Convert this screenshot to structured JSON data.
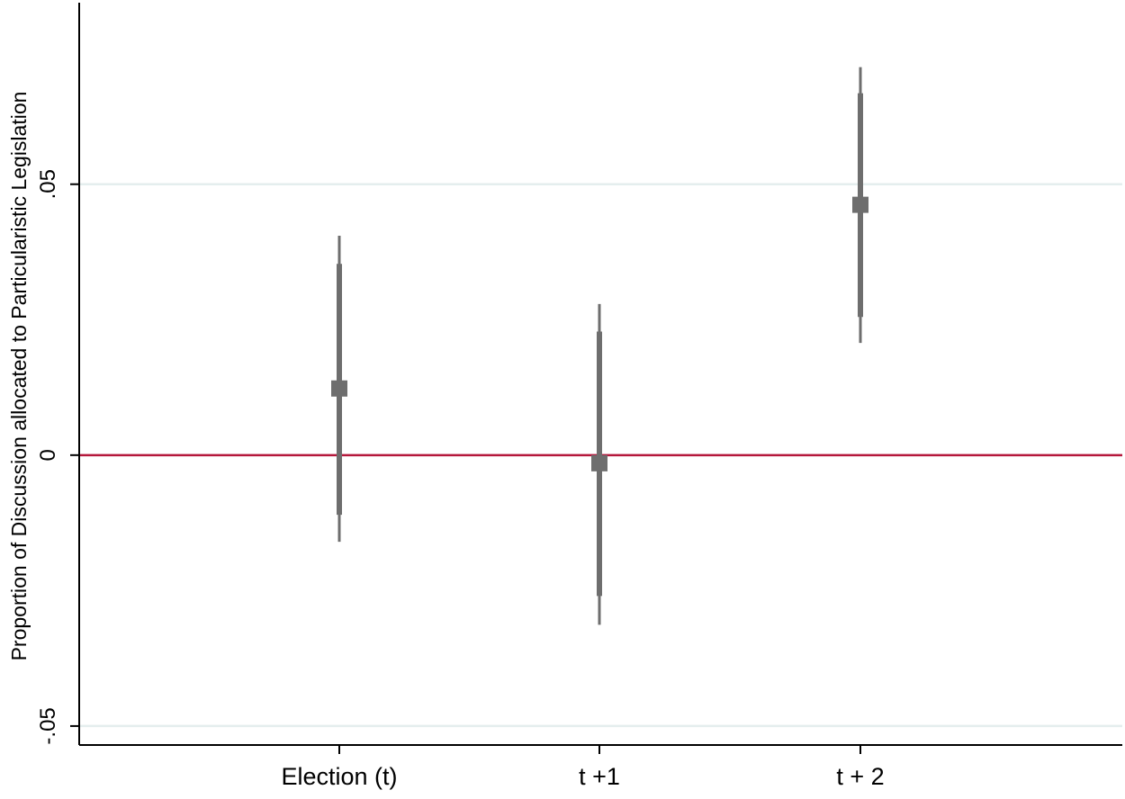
{
  "chart_data": {
    "type": "scatter",
    "title": "",
    "xlabel": "",
    "ylabel": "Proportion of Discussion allocated to Particularistic Legislation",
    "categories": [
      "Election (t)",
      "t +1",
      "t + 2"
    ],
    "ylim": [
      -0.0535,
      0.0835
    ],
    "yticks": [
      {
        "value": -0.05,
        "label": "-.05"
      },
      {
        "value": 0,
        "label": "0"
      },
      {
        "value": 0.05,
        "label": ".05"
      }
    ],
    "grid": true,
    "reference_line": {
      "value": 0,
      "color": "#b5173b"
    },
    "series": [
      {
        "points": [
          {
            "category": "Election (t)",
            "estimate": 0.0123,
            "ci_inner": [
              -0.011,
              0.0353
            ],
            "ci_outer": [
              -0.016,
              0.0405
            ]
          },
          {
            "category": "t +1",
            "estimate": -0.0015,
            "ci_inner": [
              -0.026,
              0.0228
            ],
            "ci_outer": [
              -0.0313,
              0.0279
            ]
          },
          {
            "category": "t + 2",
            "estimate": 0.0462,
            "ci_inner": [
              0.0255,
              0.0668
            ],
            "ci_outer": [
              0.0207,
              0.0716
            ]
          }
        ]
      }
    ],
    "colors": {
      "marker": "#6e6e6e",
      "grid": "#e4eeee",
      "zero_line": "#b5173b",
      "axis": "#000000"
    }
  }
}
